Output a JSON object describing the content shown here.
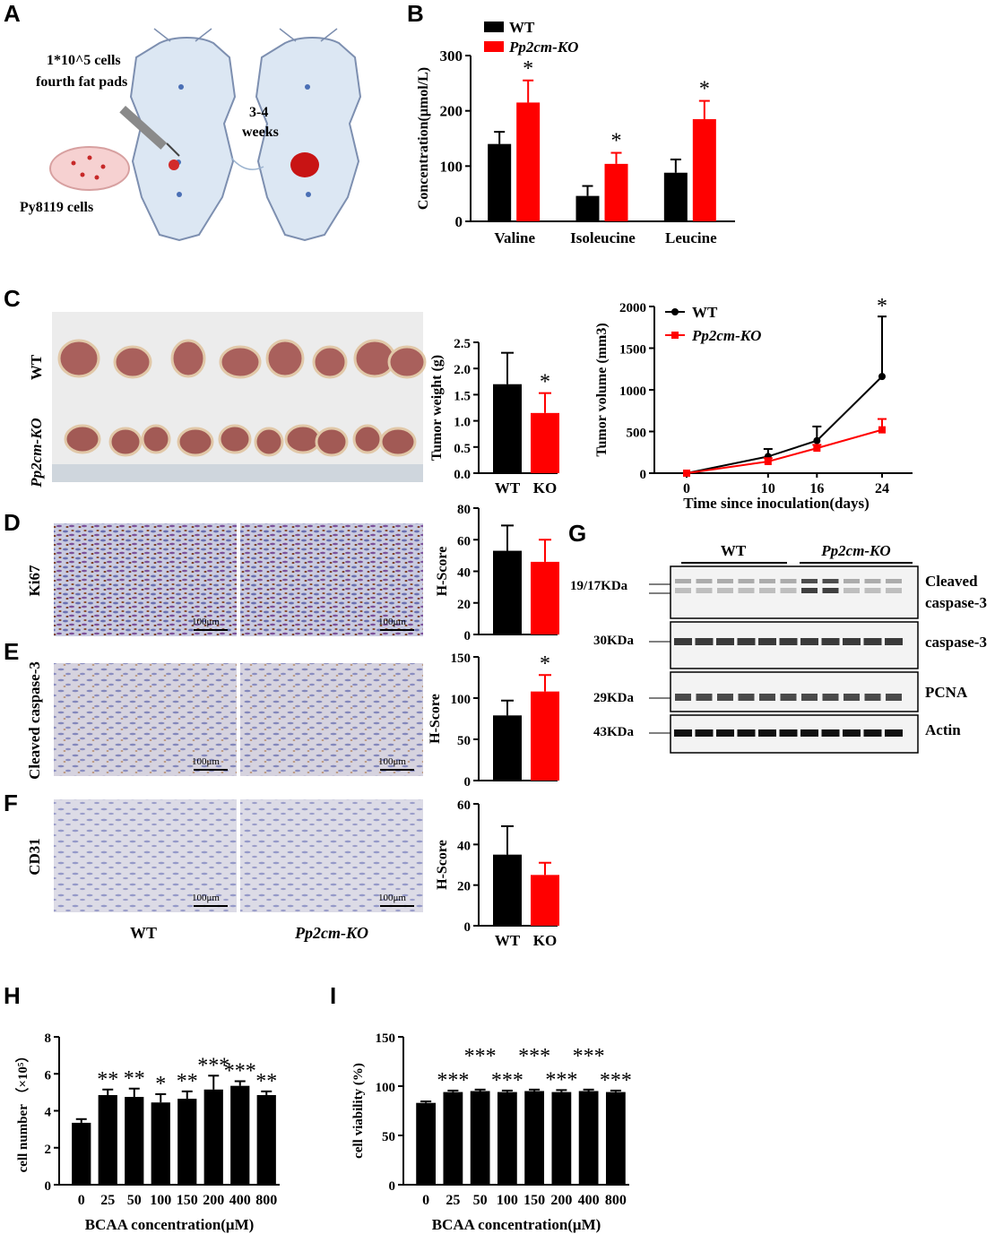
{
  "panels": {
    "A": "A",
    "B": "B",
    "C": "C",
    "D": "D",
    "E": "E",
    "F": "F",
    "G": "G",
    "H": "H",
    "I": "I"
  },
  "schematic": {
    "cells_text": "1*10^5 cells",
    "site_text": "fourth  fat pads",
    "cell_line": "Py8119 cells",
    "time_top": "3-4",
    "time_bottom": "weeks"
  },
  "photo_rows": [
    "WT",
    "Pp2cm-KO"
  ],
  "ihc": {
    "rows": [
      "Ki67",
      "Cleaved  caspase-3",
      "CD31"
    ],
    "cols": [
      "WT",
      "Pp2cm-KO"
    ],
    "scale_bar": "100μm"
  },
  "western": {
    "groups": [
      "WT",
      "Pp2cm-KO"
    ],
    "markers": [
      "19/17KDa",
      "30KDa",
      "29KDa",
      "43KDa"
    ],
    "bands": [
      "Cleaved",
      "caspase-3",
      "caspase-3",
      "PCNA",
      "Actin"
    ]
  },
  "colors": {
    "wt": "#000000",
    "ko": "#ff0000"
  },
  "chart_data": [
    {
      "id": "B",
      "type": "bar",
      "categories": [
        "Valine",
        "Isoleucine",
        "Leucine"
      ],
      "series": [
        {
          "name": "WT",
          "values": [
            140,
            46,
            88
          ],
          "errors": [
            22,
            18,
            24
          ]
        },
        {
          "name": "Pp2cm-KO",
          "values": [
            215,
            104,
            185
          ],
          "errors": [
            40,
            20,
            33
          ]
        }
      ],
      "significance": [
        "*",
        "*",
        "*"
      ],
      "ylabel": "Concentration(μmol/L)",
      "ylim": [
        0,
        300
      ],
      "yticks": [
        0,
        100,
        200,
        300
      ],
      "legend": [
        "WT",
        "Pp2cm-KO"
      ],
      "legend_position": "top-left"
    },
    {
      "id": "C-weight",
      "type": "bar",
      "categories": [
        "WT",
        "KO"
      ],
      "values": [
        1.7,
        1.15
      ],
      "errors": [
        0.6,
        0.38
      ],
      "significance": [
        "",
        "*"
      ],
      "ylabel": "Tumor weight (g)",
      "ylim": [
        0,
        2.5
      ],
      "yticks": [
        "0.0",
        "0.5",
        "1.0",
        "1.5",
        "2.0",
        "2.5"
      ]
    },
    {
      "id": "C-volume",
      "type": "line",
      "x": [
        0,
        10,
        16,
        24
      ],
      "series": [
        {
          "name": "WT",
          "values": [
            0,
            200,
            390,
            1160
          ],
          "errors": [
            0,
            90,
            170,
            720
          ]
        },
        {
          "name": "Pp2cm-KO",
          "values": [
            0,
            140,
            300,
            520
          ],
          "errors": [
            0,
            40,
            40,
            130
          ]
        }
      ],
      "significance_at": 24,
      "significance": "*",
      "xlabel": "Time since inoculation(days)",
      "ylabel": "Tumor volume (mm3)",
      "ylim": [
        0,
        2000
      ],
      "yticks": [
        0,
        500,
        1000,
        1500,
        2000
      ],
      "xticks": [
        0,
        10,
        16,
        24
      ],
      "legend_position": "top-left"
    },
    {
      "id": "D",
      "type": "bar",
      "categories": [
        "WT",
        "KO"
      ],
      "values": [
        53,
        46
      ],
      "errors": [
        16,
        14
      ],
      "significance": [
        "",
        ""
      ],
      "ylabel": "H-Score",
      "ylim": [
        0,
        80
      ],
      "yticks": [
        0,
        20,
        40,
        60,
        80
      ]
    },
    {
      "id": "E",
      "type": "bar",
      "categories": [
        "WT",
        "KO"
      ],
      "values": [
        79,
        108
      ],
      "errors": [
        18,
        20
      ],
      "significance": [
        "",
        "*"
      ],
      "ylabel": "H-Score",
      "ylim": [
        0,
        150
      ],
      "yticks": [
        0,
        50,
        100,
        150
      ]
    },
    {
      "id": "F",
      "type": "bar",
      "categories": [
        "WT",
        "KO"
      ],
      "values": [
        35,
        25
      ],
      "errors": [
        14,
        6
      ],
      "significance": [
        "",
        ""
      ],
      "ylabel": "H-Score",
      "ylim": [
        0,
        60
      ],
      "yticks": [
        0,
        20,
        40,
        60
      ]
    },
    {
      "id": "H",
      "type": "bar",
      "categories": [
        "0",
        "25",
        "50",
        "100",
        "150",
        "200",
        "400",
        "800"
      ],
      "values": [
        3.35,
        4.85,
        4.75,
        4.45,
        4.65,
        5.15,
        5.35,
        4.85
      ],
      "errors": [
        0.2,
        0.3,
        0.45,
        0.45,
        0.4,
        0.75,
        0.25,
        0.2
      ],
      "significance": [
        "",
        "**",
        "**",
        "*",
        "**",
        "***",
        "***",
        "**"
      ],
      "xlabel": "BCAA  concentration(μM)",
      "ylabel": "cell number （×10⁵）",
      "ylim": [
        0,
        8
      ],
      "yticks": [
        0,
        2,
        4,
        6,
        8
      ]
    },
    {
      "id": "I",
      "type": "bar",
      "categories": [
        "0",
        "25",
        "50",
        "100",
        "150",
        "200",
        "400",
        "800"
      ],
      "values": [
        83,
        94,
        95,
        94,
        95,
        94,
        95,
        94
      ],
      "errors": [
        1.5,
        1.5,
        1.5,
        1.5,
        1.5,
        2,
        1.5,
        1.5
      ],
      "significance": [
        "",
        "***",
        "***",
        "***",
        "***",
        "***",
        "***",
        "***"
      ],
      "xlabel": "BCAA  concentration(μM)",
      "ylabel": "cell viability (%)",
      "ylim": [
        0,
        150
      ],
      "yticks": [
        0,
        50,
        100,
        150
      ]
    }
  ]
}
